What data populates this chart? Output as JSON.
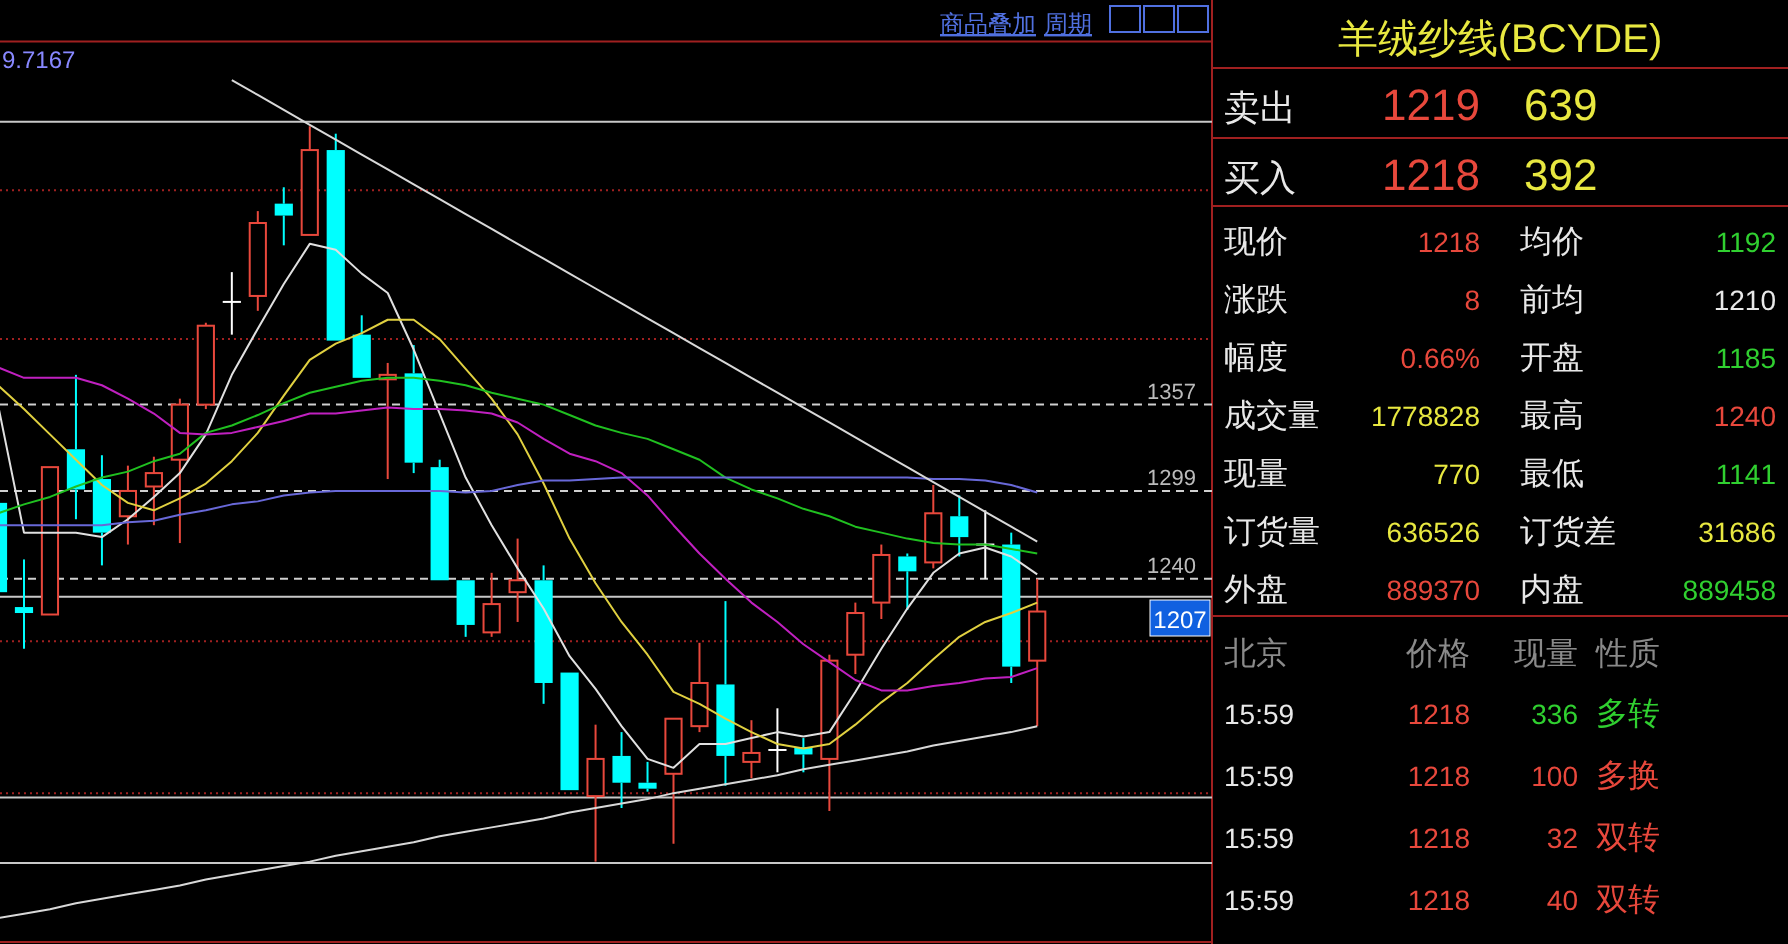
{
  "chart_data": [
    {
      "type": "candlestick",
      "categories": [
        null,
        null,
        null,
        null,
        null,
        null,
        null,
        null,
        null,
        null,
        null,
        null,
        null,
        null,
        null,
        null,
        null,
        null,
        null,
        null,
        null,
        null,
        null,
        null,
        null,
        null,
        null,
        null,
        null,
        null,
        null,
        null,
        null,
        null,
        null,
        null,
        null,
        null,
        null,
        null,
        null
      ],
      "ohlc": [
        [
          1291,
          1291,
          1231,
          1231
        ],
        [
          1221,
          1253,
          1193,
          1217
        ],
        [
          1216,
          1315,
          1216,
          1315
        ],
        [
          1327,
          1377,
          1280,
          1300
        ],
        [
          1307,
          1323,
          1249,
          1271
        ],
        [
          1282,
          1316,
          1263,
          1299
        ],
        [
          1302,
          1322,
          1276,
          1311
        ],
        [
          1320,
          1361,
          1264,
          1357
        ],
        [
          1357,
          1412,
          1354,
          1410
        ],
        [
          1426,
          1446,
          1404,
          1426
        ],
        [
          1430,
          1487,
          1420,
          1479
        ],
        [
          1492,
          1503,
          1464,
          1484
        ],
        [
          1471,
          1544,
          1471,
          1528
        ],
        [
          1528,
          1539,
          1400,
          1400
        ],
        [
          1404,
          1417,
          1375,
          1375
        ],
        [
          1374,
          1385,
          1307,
          1377
        ],
        [
          1378,
          1397,
          1311,
          1318
        ],
        [
          1315,
          1320,
          1239,
          1239
        ],
        [
          1239,
          1239,
          1201,
          1209
        ],
        [
          1204,
          1244,
          1201,
          1223
        ],
        [
          1231,
          1267,
          1211,
          1239
        ],
        [
          1239,
          1249,
          1156,
          1170
        ],
        [
          1177,
          1177,
          1098,
          1098
        ],
        [
          1094,
          1142,
          1050,
          1119
        ],
        [
          1121,
          1137,
          1086,
          1103
        ],
        [
          1103,
          1117,
          1097,
          1099
        ],
        [
          1109,
          1146,
          1062,
          1146
        ],
        [
          1141,
          1197,
          1137,
          1170
        ],
        [
          1169,
          1225,
          1101,
          1121
        ],
        [
          1117,
          1145,
          1106,
          1123
        ],
        [
          1125,
          1153,
          1110,
          1125
        ],
        [
          1127,
          1133,
          1110,
          1122
        ],
        [
          1119,
          1189,
          1084,
          1185
        ],
        [
          1189,
          1224,
          1176,
          1217
        ],
        [
          1224,
          1263,
          1213,
          1256
        ],
        [
          1255,
          1257,
          1219,
          1245
        ],
        [
          1251,
          1303,
          1247,
          1284
        ],
        [
          1282,
          1296,
          1255,
          1268
        ],
        [
          1263,
          1286,
          1240,
          1263
        ],
        [
          1263,
          1271,
          1170,
          1181
        ],
        [
          1185,
          1240,
          1141,
          1218
        ]
      ],
      "colors": [
        "#00ffff",
        "#00ffff",
        "#e8483c",
        "#00ffff",
        "#00ffff",
        "#e8483c",
        "#e8483c",
        "#e8483c",
        "#e8483c",
        "#ffffff",
        "#e8483c",
        "#00ffff",
        "#e8483c",
        "#00ffff",
        "#00ffff",
        "#e8483c",
        "#00ffff",
        "#00ffff",
        "#00ffff",
        "#e8483c",
        "#e8483c",
        "#00ffff",
        "#00ffff",
        "#e8483c",
        "#00ffff",
        "#00ffff",
        "#e8483c",
        "#e8483c",
        "#00ffff",
        "#e8483c",
        "#ffffff",
        "#00ffff",
        "#e8483c",
        "#e8483c",
        "#e8483c",
        "#00ffff",
        "#e8483c",
        "#00ffff",
        "#ffffff",
        "#00ffff",
        "#e8483c"
      ],
      "ylim": [
        996,
        1601
      ],
      "yticks": [
        1357,
        1299,
        1240
      ],
      "grid": "y",
      "tick_labels": "y",
      "marker": "none",
      "series": [
        {
          "type": "line",
          "color": "#e0e0e0",
          "values": [
            1357,
            1271,
            1271,
            1271,
            1268,
            1280,
            1295,
            1311,
            1337,
            1377,
            1408,
            1438,
            1465,
            1461,
            1445,
            1432,
            1394,
            1351,
            1308,
            1276,
            1247,
            1220,
            1188,
            1166,
            1141,
            1119,
            1113,
            1129,
            1129,
            1133,
            1137,
            1134,
            1137,
            1164,
            1193,
            1220,
            1244,
            1257,
            1261,
            1255,
            1243
          ]
        },
        {
          "type": "line",
          "color": "#e0d040",
          "values": [
            1370,
            1354,
            1337,
            1320,
            1303,
            1291,
            1286,
            1294,
            1304,
            1319,
            1338,
            1363,
            1387,
            1398,
            1405,
            1414,
            1414,
            1401,
            1381,
            1361,
            1337,
            1304,
            1267,
            1237,
            1211,
            1189,
            1164,
            1156,
            1146,
            1137,
            1129,
            1126,
            1129,
            1142,
            1157,
            1170,
            1186,
            1201,
            1211,
            1217,
            1224
          ]
        },
        {
          "type": "line",
          "color": "#20c020",
          "values": [
            1284,
            1290,
            1295,
            1302,
            1308,
            1312,
            1319,
            1324,
            1338,
            1343,
            1350,
            1358,
            1365,
            1369,
            1373,
            1375,
            1375,
            1373,
            1370,
            1365,
            1361,
            1357,
            1350,
            1343,
            1338,
            1334,
            1327,
            1320,
            1308,
            1300,
            1294,
            1287,
            1282,
            1275,
            1271,
            1267,
            1264,
            1263,
            1263,
            1260,
            1257
          ]
        },
        {
          "type": "line",
          "color": "#c020c0",
          "values": [
            1382,
            1375,
            1375,
            1375,
            1370,
            1361,
            1351,
            1338,
            1337,
            1338,
            1342,
            1346,
            1351,
            1351,
            1353,
            1355,
            1354,
            1354,
            1353,
            1351,
            1345,
            1334,
            1324,
            1319,
            1311,
            1296,
            1276,
            1257,
            1240,
            1224,
            1211,
            1196,
            1184,
            1172,
            1165,
            1165,
            1168,
            1170,
            1173,
            1174,
            1180
          ]
        },
        {
          "type": "line",
          "color": "#6868d8",
          "values": [
            1276,
            1276,
            1276,
            1276,
            1276,
            1278,
            1279,
            1283,
            1286,
            1290,
            1292,
            1296,
            1298,
            1299,
            1299,
            1299,
            1299,
            1299,
            1298,
            1299,
            1303,
            1306,
            1306,
            1307,
            1308,
            1308,
            1308,
            1308,
            1308,
            1308,
            1308,
            1308,
            1308,
            1308,
            1308,
            1308,
            1307,
            1307,
            1306,
            1303,
            1298
          ]
        },
        {
          "type": "line",
          "color": "#d8d8d8",
          "values": [
            null,
            null,
            null,
            null,
            null,
            null,
            null,
            null,
            null,
            1575,
            1565,
            1555,
            1545,
            1535,
            1525,
            1515,
            1505,
            1495,
            1485,
            1475,
            1465,
            1455,
            1445,
            1435,
            1425,
            1415,
            1405,
            1395,
            1385,
            1375,
            1365,
            1355,
            1345,
            1335,
            1325,
            1315,
            1305,
            1295,
            1285,
            1275,
            1265
          ]
        },
        {
          "type": "line",
          "color": "#d8d8d8",
          "values": [
            1012,
            1015,
            1018,
            1022,
            1025,
            1028,
            1031,
            1034,
            1038,
            1041,
            1044,
            1047,
            1050,
            1054,
            1057,
            1060,
            1063,
            1067,
            1070,
            1073,
            1076,
            1079,
            1083,
            1086,
            1089,
            1092,
            1096,
            1099,
            1102,
            1105,
            1108,
            1112,
            1115,
            1118,
            1121,
            1124,
            1128,
            1131,
            1134,
            1137,
            1141
          ]
        }
      ],
      "ref_lines": [
        {
          "axis": "y",
          "value": 1501,
          "color": "#a02020",
          "line_style": "dotted"
        },
        {
          "axis": "y",
          "value": 1401,
          "color": "#a02020",
          "line_style": "dotted"
        },
        {
          "axis": "y",
          "value": 1198,
          "color": "#a02020",
          "line_style": "dotted"
        },
        {
          "axis": "y",
          "value": 1096,
          "color": "#a02020",
          "line_style": "dotted"
        },
        {
          "axis": "y",
          "value": 1547,
          "color": "#c8c8c8",
          "line_style": "solid"
        },
        {
          "axis": "y",
          "value": 1228,
          "color": "#c8c8c8",
          "line_style": "solid"
        },
        {
          "axis": "y",
          "value": 1093,
          "color": "#c8c8c8",
          "line_style": "solid"
        },
        {
          "axis": "y",
          "value": 1049,
          "color": "#c8c8c8",
          "line_style": "solid"
        }
      ],
      "annotations": [
        "9.7167",
        "1207",
        "商品叠加",
        "周期"
      ]
    },
    {
      "type": "other",
      "title": "羊绒纱线(BCYDE)",
      "annotations": [
        "卖出",
        "1219",
        "639",
        "买入",
        "1218",
        "392",
        "现价",
        "1218",
        "均价",
        "1192",
        "涨跌",
        "8",
        "前均",
        "1210",
        "幅度",
        "0.66%",
        "开盘",
        "1185",
        "成交量",
        "1778828",
        "最高",
        "1240",
        "现量",
        "770",
        "最低",
        "1141",
        "订货量",
        "636526",
        "订货差",
        "31686",
        "外盘",
        "889370",
        "内盘",
        "889458",
        "北京",
        "价格",
        "现量",
        "性质",
        "15:59",
        "1218",
        "336",
        "多转",
        "15:59",
        "1218",
        "100",
        "多换",
        "15:59",
        "1218",
        "32",
        "双转",
        "15:59",
        "1218",
        "40",
        "双转"
      ]
    }
  ]
}
